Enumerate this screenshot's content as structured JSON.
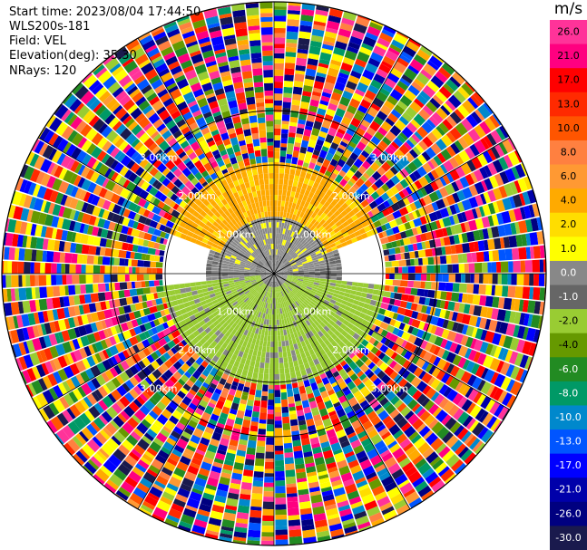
{
  "header": {
    "start_time": "Start time: 2023/08/04 17:44:50",
    "instrument": "WLS200s-181",
    "field": "Field: VEL",
    "elevation": "Elevation(deg): 35.30",
    "nrays": "NRays: 120"
  },
  "chart_data": {
    "type": "heatmap",
    "projection": "polar-ppi",
    "field": "VEL",
    "units": "m/s",
    "n_rays": 120,
    "range_rings_km": [
      1.0,
      2.0,
      3.0
    ],
    "range_labels": [
      "1.00km",
      "2.00km",
      "3.00km"
    ],
    "max_range_km": 5.0,
    "azimuth_spokes_deg": [
      0,
      30,
      60,
      90,
      120,
      150,
      180,
      210,
      240,
      270,
      300,
      330
    ],
    "clean_region_km": 2.0,
    "north_sector": {
      "az_from": -70,
      "az_to": 70,
      "range_from_km": 0.6,
      "range_to_km": 2.0,
      "value_ms": 3.0
    },
    "near_north_sector": {
      "az_from": -85,
      "az_to": 85,
      "range_from_km": 0.3,
      "range_to_km": 1.0,
      "value_ms": 0.0
    },
    "south_sector": {
      "az_from": 95,
      "az_to": 265,
      "range_from_km": 0.2,
      "range_to_km": 2.0,
      "value_ms": -2.5
    },
    "colorbar": {
      "title": "m/s",
      "tick_labels": [
        "26.0",
        "21.0",
        "17.0",
        "13.0",
        "10.0",
        "8.0",
        "6.0",
        "4.0",
        "2.0",
        "1.0",
        "0.0",
        "-1.0",
        "-2.0",
        "-4.0",
        "-6.0",
        "-8.0",
        "-10.0",
        "-13.0",
        "-17.0",
        "-21.0",
        "-26.0",
        "-30.0"
      ],
      "colors": [
        "#ff3399",
        "#ff0080",
        "#ff0000",
        "#ff2a00",
        "#ff5500",
        "#ff8040",
        "#ff9933",
        "#ffaa00",
        "#ffdd00",
        "#ffff00",
        "#888888",
        "#666666",
        "#99cc33",
        "#669900",
        "#228b22",
        "#009966",
        "#0088cc",
        "#0055ff",
        "#0000ff",
        "#0000aa",
        "#000080",
        "#1a1a4d"
      ]
    }
  }
}
